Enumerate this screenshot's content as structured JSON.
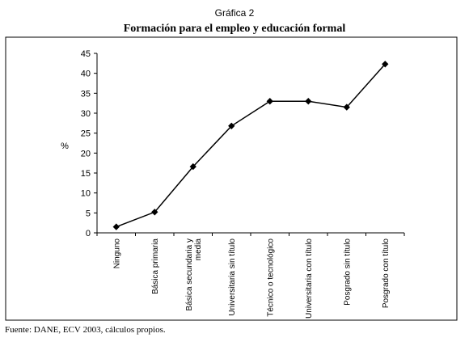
{
  "header": {
    "kicker": "Gráfica 2",
    "title": "Formación para el empleo y educación formal"
  },
  "source": {
    "prefix": "Fuente: ",
    "org1": "DANE",
    "sep": ", ",
    "org2": "ECV",
    "rest": " 2003, cálculos propios."
  },
  "chart_data": {
    "type": "line",
    "title": "Formación para el empleo y educación formal",
    "ylabel": "%",
    "xlabel": "",
    "ylim": [
      0,
      45
    ],
    "yticks": [
      0,
      5,
      10,
      15,
      20,
      25,
      30,
      35,
      40,
      45
    ],
    "grid": false,
    "legend": "none",
    "categories": [
      [
        "Ninguno"
      ],
      [
        "Básica primaria"
      ],
      [
        "Básica secundaria y",
        "media"
      ],
      [
        "Universitaria sin título"
      ],
      [
        "Técnico o tecnológico"
      ],
      [
        "Universitaria con título"
      ],
      [
        "Posgrado sin título"
      ],
      [
        "Posgrado con título"
      ]
    ],
    "values": [
      1.5,
      5.2,
      16.6,
      26.8,
      33.0,
      33.0,
      31.5,
      42.3
    ],
    "color": "#000000"
  }
}
